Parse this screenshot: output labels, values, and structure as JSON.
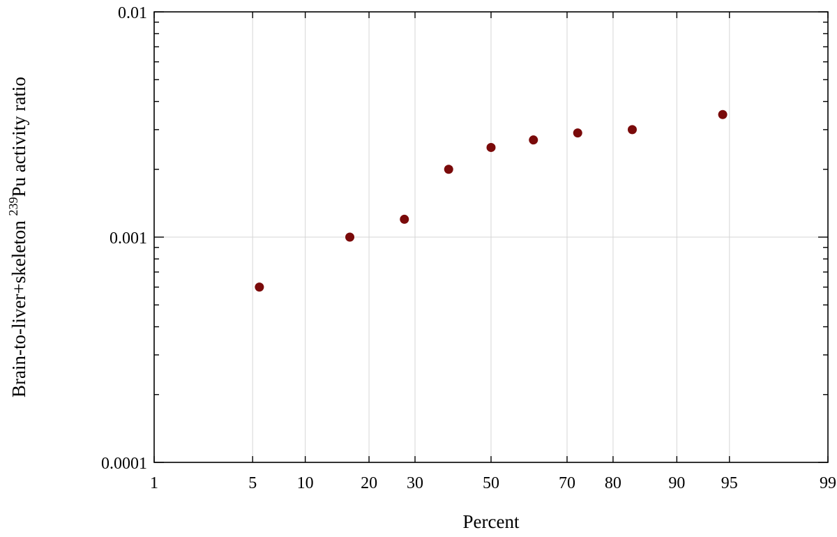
{
  "chart_data": {
    "type": "scatter",
    "title": "",
    "xlabel": "Percent",
    "ylabel_parts": {
      "prefix": "Brain-to-liver+skeleton ",
      "superscript": "239",
      "suffix": "Pu activity ratio"
    },
    "x_scale": "normal-probability",
    "y_scale": "log",
    "xlim": [
      1,
      99
    ],
    "ylim": [
      0.0001,
      0.01
    ],
    "x_ticks": [
      1,
      5,
      10,
      20,
      30,
      50,
      70,
      80,
      90,
      95,
      99
    ],
    "x_tick_labels": [
      "1",
      "5",
      "10",
      "20",
      "30",
      "50",
      "70",
      "80",
      "90",
      "95",
      "99"
    ],
    "y_ticks": [
      0.0001,
      0.001,
      0.01
    ],
    "y_tick_labels": [
      "0.0001",
      "0.001",
      "0.01"
    ],
    "grid": true,
    "marker_color": "#7a0a0a",
    "points": [
      {
        "x": 5.5,
        "y": 0.0006
      },
      {
        "x": 16.5,
        "y": 0.001
      },
      {
        "x": 27.5,
        "y": 0.0012
      },
      {
        "x": 38.5,
        "y": 0.002
      },
      {
        "x": 50,
        "y": 0.0025
      },
      {
        "x": 61.5,
        "y": 0.0027
      },
      {
        "x": 72.5,
        "y": 0.0029
      },
      {
        "x": 83.5,
        "y": 0.003
      },
      {
        "x": 94.5,
        "y": 0.0035
      }
    ]
  }
}
